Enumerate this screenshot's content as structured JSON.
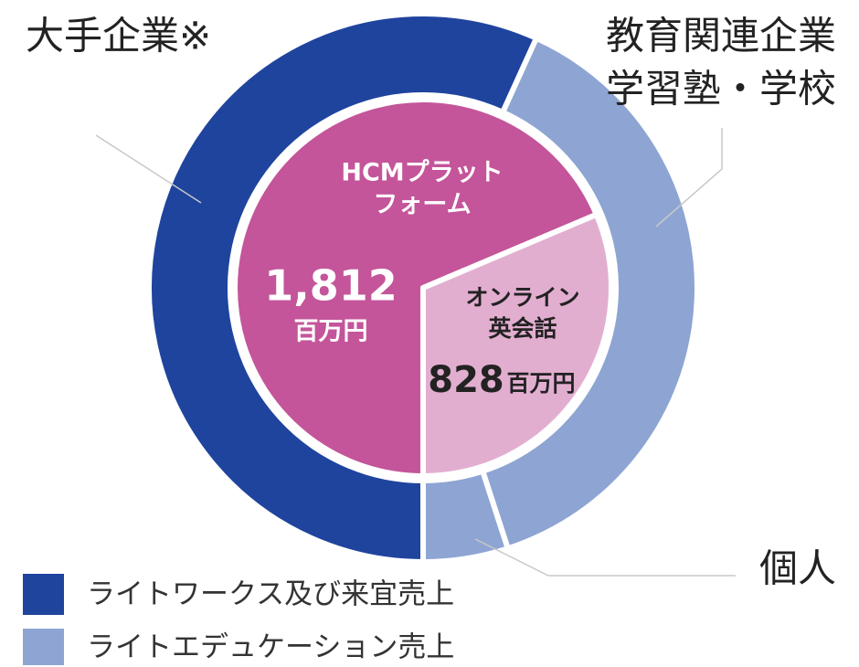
{
  "chart_data": {
    "type": "donut",
    "unit": "百万円",
    "inner": {
      "categories": [
        [
          "HCMプラット",
          "フォーム"
        ],
        [
          "オンライン",
          "英会話"
        ]
      ],
      "values": [
        1812,
        828
      ],
      "value_labels": [
        "1,812",
        "828"
      ],
      "colors": [
        "#c4559a",
        "#e2aed0"
      ]
    },
    "outer": {
      "categories": [
        [
          "大手企業※"
        ],
        [
          "教育関連企業",
          "学習塾・学校"
        ],
        [
          "個人"
        ]
      ],
      "values": [
        1499,
        1009,
        132
      ],
      "colors": [
        "#1f449e",
        "#8ea5d3",
        "#8ea5d3"
      ]
    },
    "legend": [
      {
        "name": "ライトワークス及び来宜売上",
        "color": "#1f449e"
      },
      {
        "name": "ライトエデュケーション売上",
        "color": "#8ea5d3"
      }
    ]
  }
}
